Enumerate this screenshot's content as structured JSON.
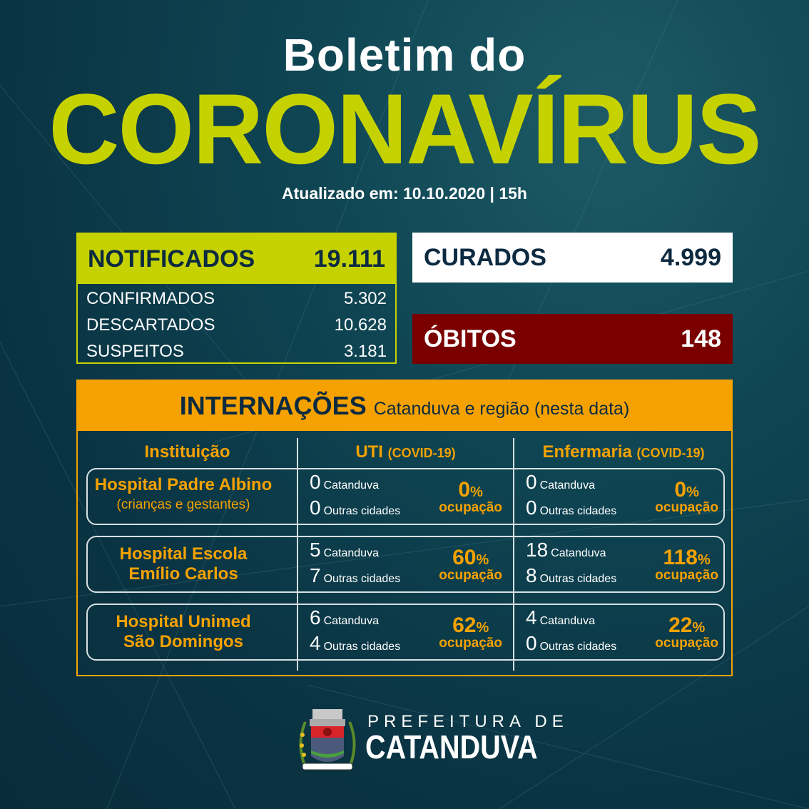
{
  "header": {
    "title_line1": "Boletim do",
    "title_line2": "CORONAVÍRUS",
    "updated": "Atualizado em: 10.10.2020 | 15h"
  },
  "notificados": {
    "label": "NOTIFICADOS",
    "value": "19.111",
    "rows": [
      {
        "label": "CONFIRMADOS",
        "value": "5.302"
      },
      {
        "label": "DESCARTADOS",
        "value": "10.628"
      },
      {
        "label": "SUSPEITOS",
        "value": "3.181"
      }
    ]
  },
  "curados": {
    "label": "CURADOS",
    "value": "4.999"
  },
  "obitos": {
    "label": "ÓBITOS",
    "value": "148"
  },
  "internacoes": {
    "title": "INTERNAÇÕES",
    "subtitle": "Catanduva e região (nesta data)",
    "columns": [
      {
        "label": "Instituição",
        "suffix": ""
      },
      {
        "label": "UTI",
        "suffix": "(COVID-19)"
      },
      {
        "label": "Enfermaria",
        "suffix": "(COVID-19)"
      }
    ],
    "catanduva_label": "Catanduva",
    "outras_label": "Outras cidades",
    "ocupacao_label": "ocupação",
    "pct_sign": "%",
    "rows": [
      {
        "name1": "Hospital Padre Albino",
        "name2": "(crianças e gestantes)",
        "uti": {
          "catanduva": "0",
          "outras": "0",
          "ocupacao": "0"
        },
        "enf": {
          "catanduva": "0",
          "outras": "0",
          "ocupacao": "0"
        }
      },
      {
        "name1": "Hospital Escola",
        "name2": "Emílio Carlos",
        "uti": {
          "catanduva": "5",
          "outras": "7",
          "ocupacao": "60"
        },
        "enf": {
          "catanduva": "18",
          "outras": "8",
          "ocupacao": "118"
        }
      },
      {
        "name1": "Hospital Unimed",
        "name2": "São Domingos",
        "uti": {
          "catanduva": "6",
          "outras": "4",
          "ocupacao": "62"
        },
        "enf": {
          "catanduva": "4",
          "outras": "0",
          "ocupacao": "22"
        }
      }
    ]
  },
  "footer": {
    "line1": "PREFEITURA DE",
    "line2": "CATANDUVA",
    "crest_text": "CATANDUVA"
  },
  "colors": {
    "lime": "#c6d200",
    "orange": "#f5a200",
    "dark_red": "#7a0000",
    "navy": "#0c2a40"
  }
}
